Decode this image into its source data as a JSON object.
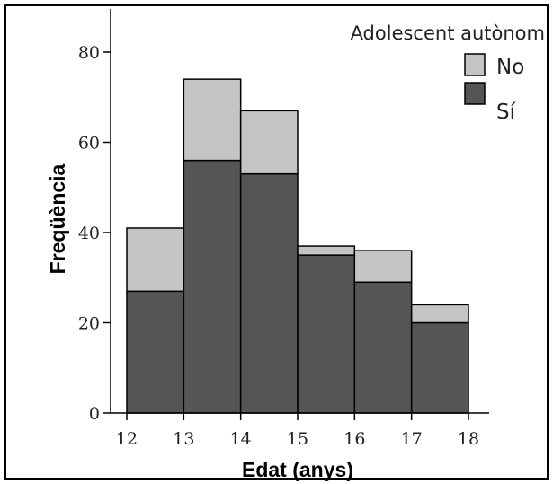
{
  "chart_data": {
    "type": "bar",
    "stacked": true,
    "histogram": true,
    "bin_edges": [
      12,
      13,
      14,
      15,
      16,
      17,
      18
    ],
    "x_ticks": [
      "12",
      "13",
      "14",
      "15",
      "16",
      "17",
      "18"
    ],
    "y_ticks": [
      "0",
      "20",
      "40",
      "60",
      "80"
    ],
    "series": [
      {
        "name": "Sí",
        "values": [
          27,
          56,
          53,
          35,
          29,
          20
        ],
        "color": "#555555"
      },
      {
        "name": "No",
        "values": [
          14,
          18,
          14,
          2,
          7,
          4
        ],
        "color": "#c4c4c4"
      }
    ],
    "title": "",
    "xlabel": "Edat (anys)",
    "ylabel": "Freqüència",
    "xlim": [
      12,
      18
    ],
    "ylim": [
      0,
      80
    ],
    "legend": {
      "title": "Adolescent autònom",
      "placement": "top-right",
      "entries": [
        {
          "label": "No",
          "color": "#c4c4c4"
        },
        {
          "label": "Sí",
          "color": "#555555"
        }
      ]
    },
    "grid": false
  }
}
